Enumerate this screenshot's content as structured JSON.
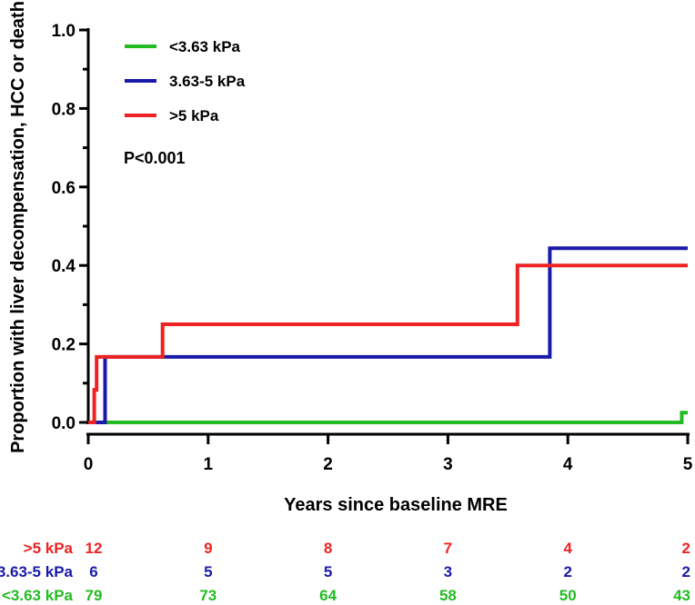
{
  "chart_data": {
    "type": "line",
    "step": true,
    "xlabel": "Years since baseline MRE",
    "ylabel": "Proportion with liver decompensation, HCC or death",
    "xlim": [
      0,
      5
    ],
    "ylim": [
      0,
      1.0
    ],
    "x_ticks": [
      0,
      1,
      2,
      3,
      4,
      5
    ],
    "x_tick_labels": [
      "0",
      "1",
      "2",
      "3",
      "4",
      "5"
    ],
    "y_ticks": [
      0,
      0.2,
      0.4,
      0.6,
      0.8,
      1.0
    ],
    "y_tick_labels": [
      "0.0",
      "0.2",
      "0.4",
      "0.6",
      "0.8",
      "1.0"
    ],
    "y_minor_ticks": [
      0.1,
      0.3,
      0.5,
      0.7,
      0.9
    ],
    "grid": false,
    "legend_position": "top-left",
    "annotation": "P<0.001",
    "series": [
      {
        "name": "<3.63 kPa",
        "color": "#22bb22",
        "points": [
          [
            0,
            0
          ],
          [
            4.95,
            0
          ],
          [
            4.95,
            0.025
          ],
          [
            5.0,
            0.025
          ]
        ]
      },
      {
        "name": "3.63-5 kPa",
        "color": "#1a1aaa",
        "points": [
          [
            0,
            0
          ],
          [
            0.14,
            0
          ],
          [
            0.14,
            0.167
          ],
          [
            3.85,
            0.167
          ],
          [
            3.85,
            0.444
          ],
          [
            5.0,
            0.444
          ]
        ]
      },
      {
        "name": ">5 kPa",
        "color": "#ee2222",
        "points": [
          [
            0,
            0
          ],
          [
            0.05,
            0
          ],
          [
            0.05,
            0.083
          ],
          [
            0.07,
            0.083
          ],
          [
            0.07,
            0.167
          ],
          [
            0.62,
            0.167
          ],
          [
            0.62,
            0.25
          ],
          [
            3.58,
            0.25
          ],
          [
            3.58,
            0.4
          ],
          [
            5.0,
            0.4
          ]
        ]
      }
    ],
    "risk_table": {
      "times": [
        0,
        1,
        2,
        3,
        4,
        5
      ],
      "rows": [
        {
          "label": ">5 kPa",
          "color": "#ee2222",
          "counts": [
            "12",
            "9",
            "8",
            "7",
            "4",
            "2"
          ]
        },
        {
          "label": "3.63-5 kPa",
          "color": "#1a1aaa",
          "counts": [
            "6",
            "5",
            "5",
            "3",
            "2",
            "2"
          ]
        },
        {
          "label": "<3.63 kPa",
          "color": "#22bb22",
          "counts": [
            "79",
            "73",
            "64",
            "58",
            "50",
            "43"
          ]
        }
      ]
    }
  }
}
